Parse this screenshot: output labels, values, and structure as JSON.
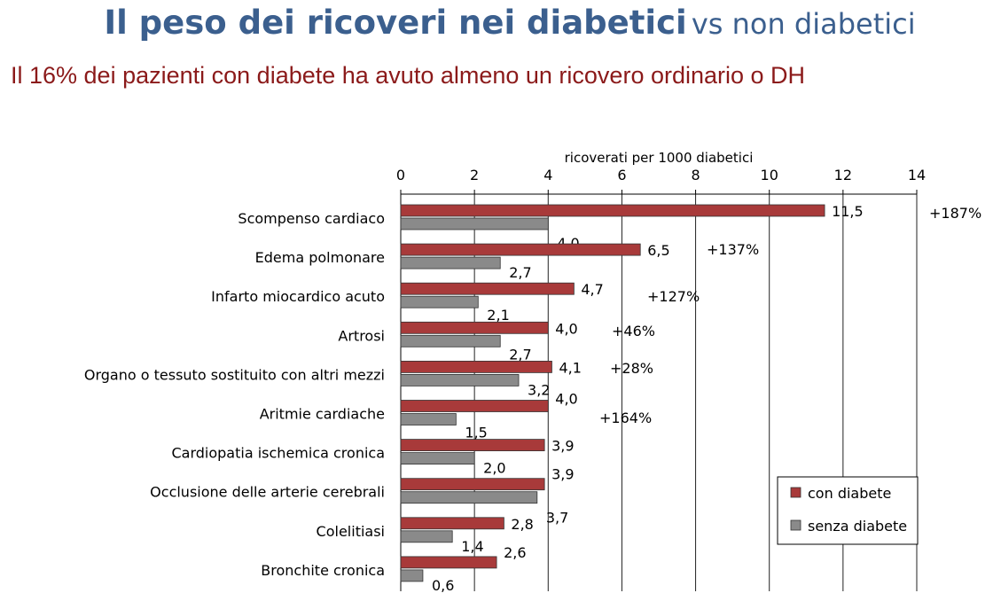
{
  "slide": {
    "title_bold": "Il peso dei ricoveri nei diabetici",
    "title_rest": "vs non diabetici",
    "subtitle": "Il 16% dei pazienti con diabete ha avuto almeno un ricovero ordinario o DH"
  },
  "colors": {
    "con_diabete": "#a83a3a",
    "senza_diabete": "#8a8a8a",
    "title": "#3b5f8e",
    "subtitle": "#8b1a1a"
  },
  "chart_data": {
    "type": "bar",
    "orientation": "horizontal",
    "xlabel": "ricoverati per 1000 diabetici",
    "xlim": [
      0,
      14
    ],
    "x_ticks": [
      "0",
      "2",
      "4",
      "6",
      "8",
      "10",
      "12",
      "14"
    ],
    "grid": "vertical",
    "legend_position": "bottom-right",
    "categories": [
      "Scompenso cardiaco",
      "Edema polmonare",
      "Infarto miocardico acuto",
      "Artrosi",
      "Organo o tessuto sostituito con altri mezzi",
      "Aritmie cardiache",
      "Cardiopatia ischemica cronica",
      "Occlusione delle arterie cerebrali",
      "Colelitiasi",
      "Bronchite cronica"
    ],
    "series": [
      {
        "name": "con diabete",
        "values": [
          11.5,
          6.5,
          4.7,
          4.0,
          4.1,
          4.0,
          3.9,
          3.9,
          2.8,
          2.6
        ],
        "labels": [
          "11,5",
          "6,5",
          "4,7",
          "4,0",
          "4,1",
          "4,0",
          "3,9",
          "3,9",
          "2,8",
          "2,6"
        ]
      },
      {
        "name": "senza diabete",
        "values": [
          4.0,
          2.7,
          2.1,
          2.7,
          3.2,
          1.5,
          2.0,
          3.7,
          1.4,
          0.6
        ],
        "labels": [
          "4,0",
          "2,7",
          "2,1",
          "2,7",
          "3,2",
          "1,5",
          "2,0",
          "3,7",
          "1,4",
          "0,6"
        ]
      }
    ],
    "annotations": [
      "+187%",
      "+137%",
      "+127%",
      "+46%",
      "+28%",
      "+164%"
    ]
  }
}
